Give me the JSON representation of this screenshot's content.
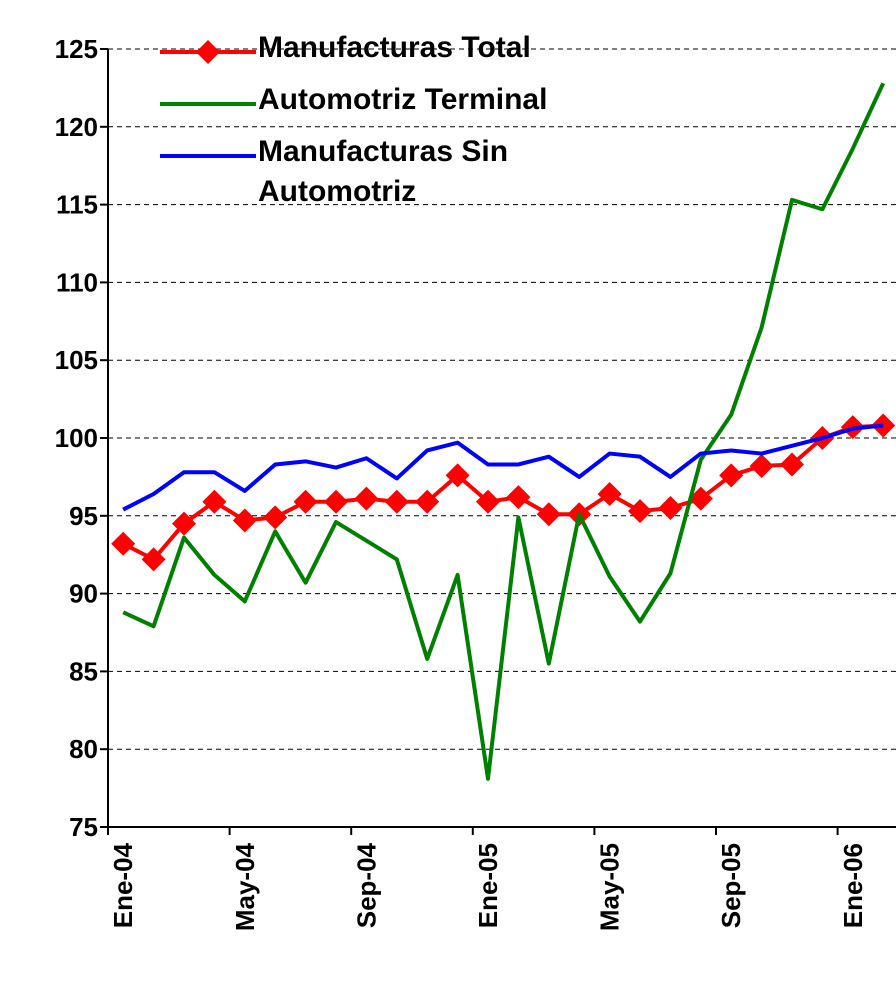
{
  "chart_data": {
    "type": "line",
    "categories": [
      "Ene-04",
      null,
      null,
      null,
      "May-04",
      null,
      null,
      null,
      "Sep-04",
      null,
      null,
      null,
      "Ene-05",
      null,
      null,
      null,
      "May-05",
      null,
      null,
      null,
      "Sep-05",
      null,
      null,
      null,
      "Ene-06",
      null
    ],
    "series": [
      {
        "name": "Manufacturas Total",
        "color": "#ff0000",
        "marker": "diamond",
        "values": [
          93.2,
          92.2,
          94.5,
          95.9,
          94.7,
          94.9,
          95.9,
          95.9,
          96.1,
          95.9,
          95.9,
          97.6,
          95.9,
          96.2,
          95.1,
          95.1,
          96.4,
          95.3,
          95.5,
          96.1,
          97.6,
          98.2,
          98.3,
          100.0,
          100.7,
          100.8
        ]
      },
      {
        "name": "Automotriz Terminal",
        "color": "#008000",
        "values": [
          88.8,
          87.9,
          93.6,
          91.2,
          89.5,
          94.0,
          90.7,
          94.6,
          93.4,
          92.2,
          85.8,
          91.2,
          78.1,
          94.9,
          85.5,
          95.1,
          91.1,
          88.2,
          91.3,
          98.6,
          101.5,
          107.1,
          115.3,
          114.7,
          118.6,
          122.8
        ]
      },
      {
        "name": "Manufacturas Sin Automotriz",
        "color": "#0000ff",
        "values": [
          95.4,
          96.4,
          97.8,
          97.8,
          96.6,
          98.3,
          98.5,
          98.1,
          98.7,
          97.4,
          99.2,
          99.7,
          98.3,
          98.3,
          98.8,
          97.5,
          99.0,
          98.8,
          97.5,
          99.0,
          99.2,
          99.0,
          99.5,
          100.0,
          100.6,
          100.8
        ]
      }
    ],
    "ylim": [
      75,
      125
    ],
    "yticks": [
      75,
      80,
      85,
      90,
      95,
      100,
      105,
      110,
      115,
      120,
      125
    ],
    "grid": true
  }
}
